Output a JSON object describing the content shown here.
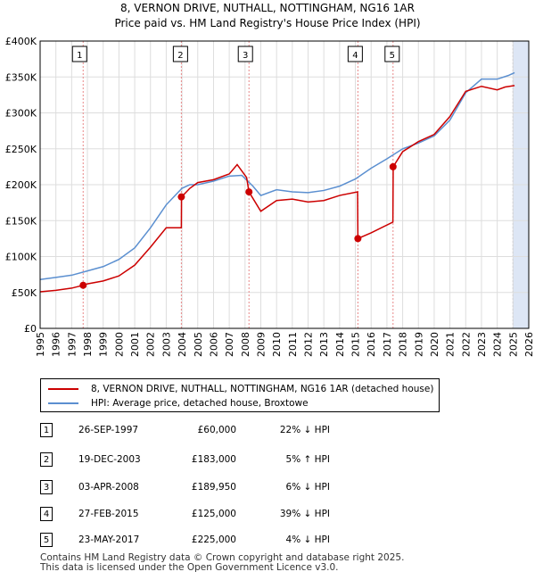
{
  "title_line1": "8, VERNON DRIVE, NUTHALL, NOTTINGHAM, NG16 1AR",
  "title_line2": "Price paid vs. HM Land Registry's House Price Index (HPI)",
  "colors": {
    "property": "#cc0000",
    "hpi": "#5b8fd0",
    "grid": "#dddddd",
    "vline": "#e88888",
    "shade": "#dde6f5"
  },
  "chart_data": {
    "type": "line",
    "title": "Price paid vs. HM Land Registry's House Price Index (HPI)",
    "xlim": [
      1995,
      2026
    ],
    "ylim": [
      0,
      400000
    ],
    "y_ticks": [
      0,
      50000,
      100000,
      150000,
      200000,
      250000,
      300000,
      350000,
      400000
    ],
    "y_tick_labels": [
      "£0",
      "£50K",
      "£100K",
      "£150K",
      "£200K",
      "£250K",
      "£300K",
      "£350K",
      "£400K"
    ],
    "x_ticks": [
      1995,
      1996,
      1997,
      1998,
      1999,
      2000,
      2001,
      2002,
      2003,
      2004,
      2005,
      2006,
      2007,
      2008,
      2009,
      2010,
      2011,
      2012,
      2013,
      2014,
      2015,
      2016,
      2017,
      2018,
      2019,
      2020,
      2021,
      2022,
      2023,
      2024,
      2025,
      2026
    ],
    "x_tick_labels": [
      "1995",
      "1996",
      "1997",
      "1998",
      "1999",
      "2000",
      "2001",
      "2002",
      "2003",
      "2004",
      "2005",
      "2006",
      "2007",
      "2008",
      "2009",
      "2010",
      "2011",
      "2012",
      "2013",
      "2014",
      "2015",
      "2016",
      "2017",
      "2018",
      "2019",
      "2020",
      "2021",
      "2022",
      "2023",
      "2024",
      "2025",
      "2026"
    ],
    "projection_start": 2025.0,
    "series": [
      {
        "name": "8, VERNON DRIVE, NUTHALL, NOTTINGHAM, NG16 1AR (detached house)",
        "x": [
          1995,
          1996,
          1997,
          1997.73,
          1998,
          1999,
          2000,
          2001,
          2002,
          2003,
          2003.96,
          2003.97,
          2004.5,
          2005,
          2006,
          2007,
          2007.5,
          2008.1,
          2008.25,
          2009,
          2010,
          2011,
          2012,
          2013,
          2014,
          2015.14,
          2015.16,
          2016,
          2017.38,
          2017.4,
          2018,
          2019,
          2020,
          2021,
          2022,
          2023,
          2024,
          2024.5,
          2025.1
        ],
        "y": [
          51000,
          53000,
          56000,
          60000,
          62000,
          66000,
          73000,
          88000,
          113000,
          140000,
          140000,
          183000,
          195000,
          203000,
          207000,
          215000,
          228000,
          210000,
          190000,
          163000,
          178000,
          180000,
          176000,
          178000,
          185000,
          190000,
          125000,
          133000,
          148000,
          225000,
          246000,
          260000,
          270000,
          295000,
          330000,
          337000,
          332000,
          336000,
          338000
        ]
      },
      {
        "name": "HPI: Average price, detached house, Broxtowe",
        "x": [
          1995,
          1996,
          1997,
          1998,
          1999,
          2000,
          2001,
          2002,
          2003,
          2004,
          2004.5,
          2005,
          2006,
          2007,
          2007.8,
          2008.5,
          2009,
          2010,
          2011,
          2012,
          2013,
          2014,
          2015,
          2016,
          2017,
          2018,
          2019,
          2020,
          2021,
          2022,
          2023,
          2024,
          2024.7,
          2025.1
        ],
        "y": [
          68000,
          71000,
          74000,
          80000,
          86000,
          96000,
          112000,
          140000,
          172000,
          195000,
          200000,
          200000,
          205000,
          212000,
          213000,
          198000,
          185000,
          193000,
          190000,
          189000,
          192000,
          198000,
          208000,
          223000,
          236000,
          250000,
          258000,
          268000,
          290000,
          328000,
          347000,
          347000,
          352000,
          356000
        ]
      }
    ],
    "sales": [
      {
        "label": "1",
        "x": 1997.73,
        "y": 60000
      },
      {
        "label": "2",
        "x": 2003.96,
        "y": 183000
      },
      {
        "label": "3",
        "x": 2008.25,
        "y": 189950
      },
      {
        "label": "4",
        "x": 2015.16,
        "y": 125000
      },
      {
        "label": "5",
        "x": 2017.39,
        "y": 225000
      }
    ]
  },
  "legend": {
    "property_label": "8, VERNON DRIVE, NUTHALL, NOTTINGHAM, NG16 1AR (detached house)",
    "hpi_label": "HPI: Average price, detached house, Broxtowe"
  },
  "sales_table": [
    {
      "num": "1",
      "date": "26-SEP-1997",
      "price": "£60,000",
      "hpi": "22% ↓ HPI"
    },
    {
      "num": "2",
      "date": "19-DEC-2003",
      "price": "£183,000",
      "hpi": "5% ↑ HPI"
    },
    {
      "num": "3",
      "date": "03-APR-2008",
      "price": "£189,950",
      "hpi": "6% ↓ HPI"
    },
    {
      "num": "4",
      "date": "27-FEB-2015",
      "price": "£125,000",
      "hpi": "39% ↓ HPI"
    },
    {
      "num": "5",
      "date": "23-MAY-2017",
      "price": "£225,000",
      "hpi": "4% ↓ HPI"
    }
  ],
  "footer_line1": "Contains HM Land Registry data © Crown copyright and database right 2025.",
  "footer_line2": "This data is licensed under the Open Government Licence v3.0."
}
